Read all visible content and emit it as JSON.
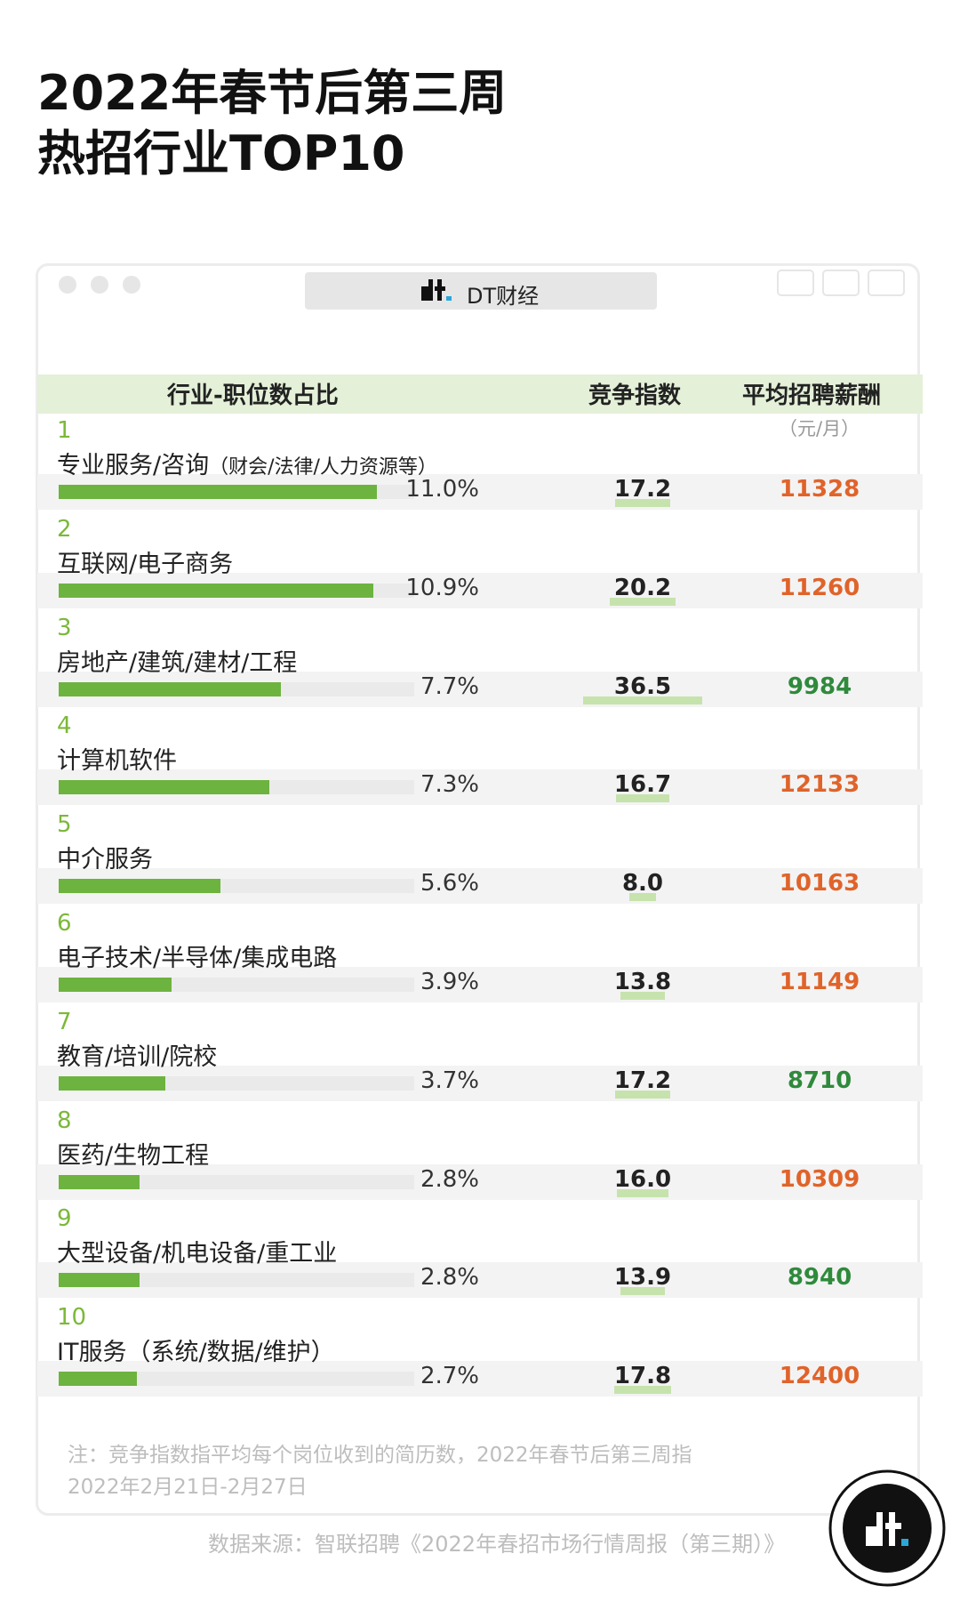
{
  "header": {
    "title_line1": "2022年春节后第三周",
    "title_line2": "热招行业TOP10"
  },
  "window": {
    "title": "DT财经"
  },
  "table": {
    "columns": {
      "industry": "行业-职位数占比",
      "competition": "竞争指数",
      "salary": "平均招聘薪酬",
      "salary_unit": "（元/月）"
    },
    "rows": [
      {
        "rank": "1",
        "industry": "专业服务/咨询",
        "industry_note": "（财会/法律/人力资源等）",
        "share": 11.0,
        "share_label": "11.0%",
        "competition": 17.2,
        "competition_label": "17.2",
        "salary": 11328,
        "salary_color": "#e0632a"
      },
      {
        "rank": "2",
        "industry": "互联网/电子商务",
        "share": 10.9,
        "share_label": "10.9%",
        "competition": 20.2,
        "competition_label": "20.2",
        "salary": 11260,
        "salary_color": "#e0632a"
      },
      {
        "rank": "3",
        "industry": "房地产/建筑/建材/工程",
        "share": 7.7,
        "share_label": "7.7%",
        "competition": 36.5,
        "competition_label": "36.5",
        "salary": 9984,
        "salary_color": "#2f8a3c"
      },
      {
        "rank": "4",
        "industry": "计算机软件",
        "share": 7.3,
        "share_label": "7.3%",
        "competition": 16.7,
        "competition_label": "16.7",
        "salary": 12133,
        "salary_color": "#e0632a"
      },
      {
        "rank": "5",
        "industry": "中介服务",
        "share": 5.6,
        "share_label": "5.6%",
        "competition": 8.0,
        "competition_label": "8.0",
        "salary": 10163,
        "salary_color": "#e0632a"
      },
      {
        "rank": "6",
        "industry": "电子技术/半导体/集成电路",
        "share": 3.9,
        "share_label": "3.9%",
        "competition": 13.8,
        "competition_label": "13.8",
        "salary": 11149,
        "salary_color": "#e0632a"
      },
      {
        "rank": "7",
        "industry": "教育/培训/院校",
        "share": 3.7,
        "share_label": "3.7%",
        "competition": 17.2,
        "competition_label": "17.2",
        "salary": 8710,
        "salary_color": "#2f8a3c"
      },
      {
        "rank": "8",
        "industry": "医药/生物工程",
        "share": 2.8,
        "share_label": "2.8%",
        "competition": 16.0,
        "competition_label": "16.0",
        "salary": 10309,
        "salary_color": "#e0632a"
      },
      {
        "rank": "9",
        "industry": "大型设备/机电设备/重工业",
        "share": 2.8,
        "share_label": "2.8%",
        "competition": 13.9,
        "competition_label": "13.9",
        "salary": 8940,
        "salary_color": "#2f8a3c"
      },
      {
        "rank": "10",
        "industry": "IT服务（系统/数据/维护）",
        "share": 2.7,
        "share_label": "2.7%",
        "competition": 17.8,
        "competition_label": "17.8",
        "salary": 12400,
        "salary_color": "#e0632a"
      }
    ]
  },
  "note": {
    "line1": "注：竞争指数指平均每个岗位收到的简历数，2022年春节后第三周指",
    "line2": "2022年2月21日-2月27日"
  },
  "source": "数据来源：智联招聘《2022年春招市场行情周报（第三期）》"
}
